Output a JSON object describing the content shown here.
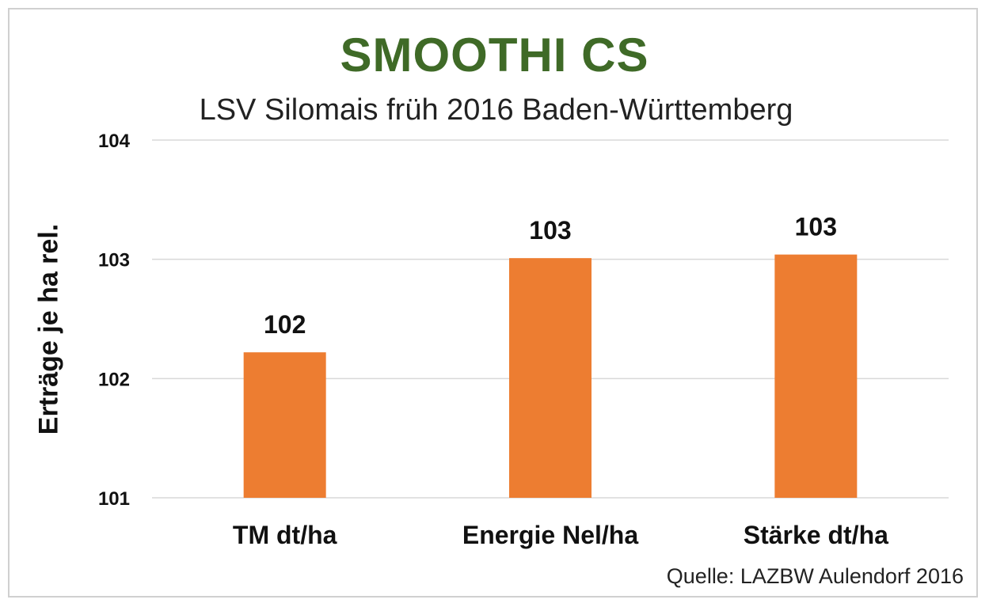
{
  "chart_data": {
    "type": "bar",
    "title": "SMOOTHI CS",
    "subtitle": "LSV Silomais früh 2016 Baden-Württemberg",
    "ylabel": "Erträge je ha rel.",
    "xlabel": "",
    "categories": [
      "TM dt/ha",
      "Energie Nel/ha",
      "Stärke dt/ha"
    ],
    "values": [
      102.22,
      103.01,
      103.04
    ],
    "data_labels": [
      "102",
      "103",
      "103"
    ],
    "ylim": [
      101,
      104
    ],
    "yticks": [
      "101",
      "102",
      "103",
      "104"
    ],
    "grid": true,
    "legend": "none",
    "colors": {
      "bar": "#ed7d31",
      "title": "#3f6a27",
      "grid": "#d9d9d9"
    }
  },
  "footer": {
    "source": "Quelle: LAZBW Aulendorf 2016"
  }
}
